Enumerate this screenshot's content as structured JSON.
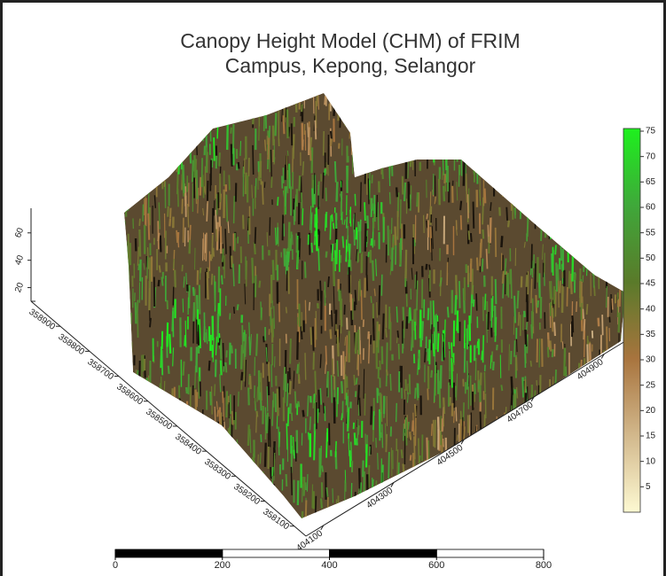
{
  "chart_data": {
    "type": "surface3d",
    "title": [
      "Canopy Height Model (CHM) of FRIM",
      "Campus, Kepong, Selangor"
    ],
    "xlim": [
      404050,
      404960
    ],
    "xticks": [
      404100,
      404300,
      404500,
      404700,
      404900
    ],
    "ylim": [
      358060,
      359000
    ],
    "yticks": [
      358100,
      358200,
      358300,
      358400,
      358500,
      358600,
      358700,
      358800,
      358900
    ],
    "zlim": [
      10,
      78
    ],
    "zticks": [
      20,
      40,
      60
    ],
    "colorbar": {
      "lim": [
        0,
        75
      ],
      "ticks": [
        5,
        10,
        15,
        20,
        25,
        30,
        35,
        40,
        45,
        50,
        55,
        60,
        65,
        70,
        75
      ],
      "colorscale": [
        {
          "value": 0,
          "color": "#fdf9d2"
        },
        {
          "value": 15,
          "color": "#d2b88c"
        },
        {
          "value": 30,
          "color": "#a8743e"
        },
        {
          "value": 45,
          "color": "#5a7a2a"
        },
        {
          "value": 60,
          "color": "#3fa83a"
        },
        {
          "value": 75,
          "color": "#1ef01e"
        }
      ]
    },
    "scale_bar": {
      "ticks": [
        0,
        200,
        400,
        600,
        800
      ]
    }
  }
}
